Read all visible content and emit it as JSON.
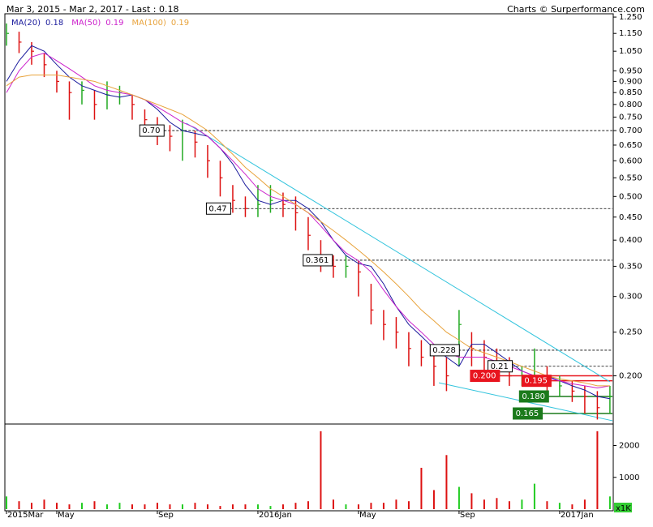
{
  "header": {
    "title": "Mar 3, 2015 - Mar 2, 2017 - Last : 0.18",
    "credit": "Charts © Surperformance.com"
  },
  "chart_data": {
    "type": "ohlc",
    "log_scale": true,
    "categories": [
      "2015Mar",
      null,
      null,
      null,
      "May",
      null,
      null,
      null,
      null,
      null,
      null,
      null,
      "Sep",
      null,
      null,
      null,
      null,
      null,
      null,
      null,
      "2016Jan",
      null,
      null,
      null,
      null,
      null,
      null,
      null,
      "May",
      null,
      null,
      null,
      null,
      null,
      null,
      null,
      "Sep",
      null,
      null,
      null,
      null,
      null,
      null,
      null,
      "2017Jan",
      null,
      null,
      null,
      null
    ],
    "high": [
      1.21,
      1.16,
      1.1,
      1.04,
      0.95,
      0.9,
      0.9,
      0.86,
      0.9,
      0.88,
      0.84,
      0.78,
      0.75,
      0.72,
      0.74,
      0.7,
      0.65,
      0.6,
      0.53,
      0.5,
      0.53,
      0.53,
      0.51,
      0.5,
      0.45,
      0.4,
      0.37,
      0.37,
      0.36,
      0.32,
      0.28,
      0.27,
      0.25,
      0.24,
      0.23,
      0.22,
      0.28,
      0.25,
      0.24,
      0.23,
      0.22,
      0.21,
      0.23,
      0.21,
      0.2,
      0.195,
      0.19,
      0.185,
      0.19
    ],
    "low": [
      1.08,
      1.04,
      0.98,
      0.92,
      0.85,
      0.74,
      0.8,
      0.74,
      0.78,
      0.8,
      0.74,
      0.68,
      0.65,
      0.63,
      0.6,
      0.61,
      0.55,
      0.5,
      0.46,
      0.45,
      0.45,
      0.46,
      0.45,
      0.42,
      0.38,
      0.34,
      0.33,
      0.33,
      0.3,
      0.26,
      0.24,
      0.23,
      0.21,
      0.21,
      0.19,
      0.185,
      0.21,
      0.21,
      0.205,
      0.195,
      0.19,
      0.19,
      0.19,
      0.18,
      0.18,
      0.175,
      0.165,
      0.16,
      0.165
    ],
    "close": [
      1.15,
      1.1,
      1.05,
      0.98,
      0.9,
      0.85,
      0.86,
      0.8,
      0.84,
      0.85,
      0.8,
      0.74,
      0.7,
      0.68,
      0.7,
      0.66,
      0.6,
      0.55,
      0.49,
      0.47,
      0.48,
      0.49,
      0.48,
      0.46,
      0.41,
      0.37,
      0.35,
      0.35,
      0.34,
      0.28,
      0.26,
      0.25,
      0.23,
      0.22,
      0.21,
      0.2,
      0.26,
      0.23,
      0.22,
      0.21,
      0.2,
      0.2,
      0.2,
      0.19,
      0.19,
      0.185,
      0.18,
      0.17,
      0.18
    ],
    "series": [
      {
        "name": "MA(20)",
        "last": 0.18,
        "color": "#1a1a9c",
        "values": [
          0.9,
          1.0,
          1.08,
          1.05,
          0.98,
          0.92,
          0.88,
          0.86,
          0.84,
          0.83,
          0.84,
          0.82,
          0.78,
          0.73,
          0.7,
          0.69,
          0.68,
          0.64,
          0.59,
          0.53,
          0.49,
          0.48,
          0.49,
          0.49,
          0.47,
          0.44,
          0.4,
          0.37,
          0.355,
          0.35,
          0.32,
          0.285,
          0.26,
          0.245,
          0.23,
          0.22,
          0.21,
          0.235,
          0.235,
          0.225,
          0.215,
          0.205,
          0.2,
          0.2,
          0.195,
          0.19,
          0.186,
          0.18,
          0.178
        ]
      },
      {
        "name": "MA(50)",
        "last": 0.19,
        "color": "#cc22cc",
        "values": [
          0.85,
          0.95,
          1.02,
          1.04,
          1.0,
          0.96,
          0.92,
          0.88,
          0.86,
          0.85,
          0.84,
          0.82,
          0.79,
          0.76,
          0.73,
          0.71,
          0.68,
          0.64,
          0.6,
          0.56,
          0.52,
          0.5,
          0.49,
          0.48,
          0.46,
          0.43,
          0.4,
          0.375,
          0.36,
          0.34,
          0.31,
          0.285,
          0.265,
          0.25,
          0.235,
          0.225,
          0.22,
          0.22,
          0.22,
          0.215,
          0.21,
          0.205,
          0.2,
          0.198,
          0.195,
          0.192,
          0.19,
          0.188,
          0.19
        ]
      },
      {
        "name": "MA(100)",
        "last": 0.19,
        "color": "#e8a33c",
        "values": [
          0.88,
          0.92,
          0.93,
          0.93,
          0.93,
          0.92,
          0.91,
          0.9,
          0.88,
          0.86,
          0.84,
          0.82,
          0.8,
          0.78,
          0.76,
          0.73,
          0.7,
          0.66,
          0.62,
          0.58,
          0.55,
          0.52,
          0.5,
          0.48,
          0.46,
          0.44,
          0.42,
          0.4,
          0.38,
          0.36,
          0.34,
          0.32,
          0.3,
          0.28,
          0.265,
          0.25,
          0.24,
          0.23,
          0.225,
          0.22,
          0.215,
          0.21,
          0.205,
          0.2,
          0.197,
          0.195,
          0.193,
          0.19,
          0.19
        ]
      }
    ],
    "ylim": [
      0.157,
      1.266
    ],
    "yticks": [
      {
        "value": 1.25,
        "label": "1.250"
      },
      {
        "value": 1.15,
        "label": "1.150"
      },
      {
        "value": 1.05,
        "label": "1.050"
      },
      {
        "value": 0.95,
        "label": "0.950"
      },
      {
        "value": 0.9,
        "label": "0.900"
      },
      {
        "value": 0.85,
        "label": "0.850"
      },
      {
        "value": 0.8,
        "label": "0.800"
      },
      {
        "value": 0.75,
        "label": "0.750"
      },
      {
        "value": 0.7,
        "label": "0.700"
      },
      {
        "value": 0.65,
        "label": "0.650"
      },
      {
        "value": 0.6,
        "label": "0.600"
      },
      {
        "value": 0.55,
        "label": "0.550"
      },
      {
        "value": 0.5,
        "label": "0.500"
      },
      {
        "value": 0.45,
        "label": "0.450"
      },
      {
        "value": 0.4,
        "label": "0.400"
      },
      {
        "value": 0.35,
        "label": "0.350"
      },
      {
        "value": 0.3,
        "label": "0.300"
      },
      {
        "value": 0.25,
        "label": "0.250"
      },
      {
        "value": 0.2,
        "label": "0.200"
      }
    ],
    "xlim": [
      0,
      48.2
    ],
    "annotations": [
      {
        "label": "0.70",
        "value": 0.7,
        "x": 10.6,
        "color": "#000000",
        "dashed": true
      },
      {
        "label": "0.47",
        "value": 0.47,
        "x": 15.9,
        "color": "#000000",
        "dashed": true
      },
      {
        "label": "0.361",
        "value": 0.361,
        "x": 23.6,
        "color": "#000000",
        "dashed": true
      },
      {
        "label": "0.228",
        "value": 0.228,
        "x": 33.7,
        "color": "#000000",
        "dashed": true
      },
      {
        "label": "0.21",
        "value": 0.21,
        "x": 38.3,
        "color": "#000000",
        "dashed": true
      },
      {
        "label": "0.200",
        "value": 0.2,
        "x": 36.9,
        "color": "#e8141e",
        "dashed": false
      },
      {
        "label": "0.195",
        "value": 0.195,
        "x": 41,
        "color": "#e8141e",
        "dashed": false
      },
      {
        "label": "0.180",
        "value": 0.18,
        "x": 40.8,
        "color": "#1b7a1b",
        "dashed": false
      },
      {
        "label": "0.165",
        "value": 0.165,
        "x": 40.3,
        "color": "#1b7a1b",
        "dashed": false
      }
    ],
    "trendlines": [
      {
        "x": [
          14.3,
          48
        ],
        "y": [
          0.727,
          0.194
        ],
        "color": "#33c4dd"
      },
      {
        "x": [
          34.4,
          48.2
        ],
        "y": [
          0.193,
          0.159
        ],
        "color": "#33c4dd"
      }
    ],
    "volume": {
      "label": "x1K",
      "ylim": [
        0,
        2650
      ],
      "yticks": [
        1000,
        2000
      ],
      "values": [
        400,
        250,
        200,
        300,
        200,
        150,
        200,
        250,
        150,
        200,
        150,
        150,
        200,
        150,
        150,
        200,
        150,
        100,
        150,
        150,
        150,
        100,
        150,
        200,
        250,
        2450,
        300,
        150,
        150,
        200,
        200,
        300,
        250,
        1300,
        600,
        1700,
        700,
        500,
        300,
        350,
        250,
        300,
        800,
        250,
        200,
        150,
        300,
        2450,
        400
      ]
    }
  }
}
